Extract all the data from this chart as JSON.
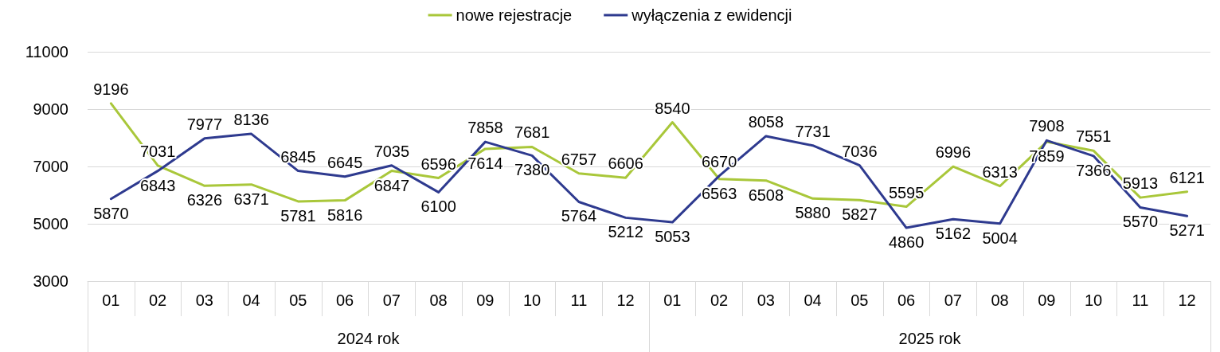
{
  "chart_data": {
    "type": "line",
    "categories": [
      "01",
      "02",
      "03",
      "04",
      "05",
      "06",
      "07",
      "08",
      "09",
      "10",
      "11",
      "12",
      "01",
      "02",
      "03",
      "04",
      "05",
      "06",
      "07",
      "08",
      "09",
      "10",
      "11",
      "12"
    ],
    "series": [
      {
        "name": "nowe rejestracje",
        "color": "#a9c73a",
        "values": [
          9196,
          7031,
          6326,
          6371,
          5781,
          5816,
          6847,
          6596,
          7614,
          7681,
          6757,
          6606,
          8540,
          6563,
          6508,
          5880,
          5827,
          5595,
          6996,
          6313,
          7859,
          7551,
          5913,
          6121
        ]
      },
      {
        "name": "wyłączenia z ewidencji",
        "color": "#2e3a8f",
        "values": [
          5870,
          6843,
          7977,
          8136,
          6845,
          6645,
          7035,
          6100,
          7858,
          7380,
          5764,
          5212,
          5053,
          6670,
          8058,
          7731,
          7036,
          4860,
          5162,
          5004,
          7908,
          7366,
          5570,
          5271
        ]
      }
    ],
    "annotations": [
      "2024 rok",
      "2025 rok"
    ],
    "ylim": [
      3000,
      11000
    ],
    "yticks": [
      3000,
      5000,
      7000,
      9000,
      11000
    ],
    "grid": "y",
    "legend": "top",
    "data_labels": true,
    "marker": "none",
    "line_style": "solid"
  }
}
